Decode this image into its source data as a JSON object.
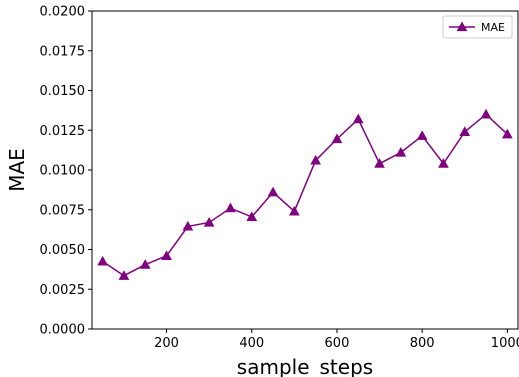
{
  "chart_data": {
    "type": "line",
    "xlabel": "sample_steps",
    "ylabel": "MAE",
    "xlim": [
      25,
      1025
    ],
    "ylim": [
      0,
      0.02
    ],
    "xticks": [
      200,
      400,
      600,
      800,
      1000
    ],
    "yticks": [
      0.0,
      0.0025,
      0.005,
      0.0075,
      0.01,
      0.0125,
      0.015,
      0.0175,
      0.02
    ],
    "xtick_labels": [
      "200",
      "400",
      "600",
      "800",
      "1000"
    ],
    "ytick_labels": [
      "0.0000",
      "0.0025",
      "0.0050",
      "0.0075",
      "0.0100",
      "0.0125",
      "0.0150",
      "0.0175",
      "0.0200"
    ],
    "grid": false,
    "legend_position": "top-right",
    "series": [
      {
        "name": "MAE",
        "color": "#800080",
        "marker": "triangle-up",
        "x": [
          50,
          100,
          150,
          200,
          250,
          300,
          350,
          400,
          450,
          500,
          550,
          600,
          650,
          700,
          750,
          800,
          850,
          900,
          950,
          1000
        ],
        "y": [
          0.00425,
          0.00335,
          0.00405,
          0.0046,
          0.00645,
          0.0067,
          0.0076,
          0.00705,
          0.0086,
          0.0074,
          0.0106,
          0.01195,
          0.0132,
          0.0104,
          0.0111,
          0.01215,
          0.0104,
          0.0124,
          0.0135,
          0.01225
        ]
      }
    ]
  }
}
